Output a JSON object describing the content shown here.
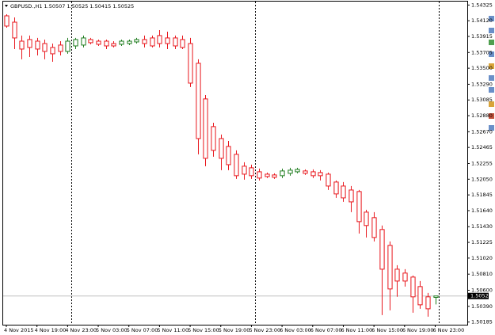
{
  "chart_data": {
    "type": "candlestick",
    "title": "GBPUSD.,H1  1.50507 1.50525 1.50415 1.50525",
    "categories": [
      "4 Nov 2015",
      null,
      null,
      null,
      "4 Nov 19:00",
      null,
      null,
      null,
      "4 Nov 23:00",
      null,
      null,
      null,
      "5 Nov 03:00",
      null,
      null,
      null,
      "5 Nov 07:00",
      null,
      null,
      null,
      "5 Nov 11:00",
      null,
      null,
      null,
      "5 Nov 15:00",
      null,
      null,
      null,
      "5 Nov 19:00",
      null,
      null,
      null,
      "5 Nov 23:00",
      null,
      null,
      null,
      "6 Nov 03:00",
      null,
      null,
      null,
      "6 Nov 07:00",
      null,
      null,
      null,
      "6 Nov 11:00",
      null,
      null,
      null,
      "6 Nov 15:00",
      null,
      null,
      null,
      "6 Nov 19:00",
      null,
      null,
      null,
      "6 Nov 23:00"
    ],
    "open": [
      1.54184,
      1.54101,
      1.53853,
      1.53874,
      1.53853,
      1.53822,
      1.53771,
      1.53802,
      1.53719,
      1.53791,
      1.53802,
      1.53874,
      1.53853,
      1.53853,
      1.53822,
      1.53812,
      1.53822,
      1.53843,
      1.53874,
      1.53895,
      1.53926,
      1.53895,
      1.53895,
      1.53874,
      1.53822,
      1.53564,
      1.53099,
      1.52737,
      1.52581,
      1.52478,
      1.52375,
      1.5222,
      1.52199,
      1.52147,
      1.52116,
      1.52106,
      1.52096,
      1.52127,
      1.52147,
      1.52158,
      1.52147,
      1.52137,
      1.52116,
      1.52013,
      1.51961,
      1.51909,
      1.51889,
      1.5162,
      1.51548,
      1.51393,
      1.51186,
      1.50875,
      1.50824,
      1.50772,
      1.50648,
      1.50514,
      1.50507
    ],
    "high": [
      1.54205,
      1.54163,
      1.53926,
      1.53926,
      1.53895,
      1.53874,
      1.53822,
      1.53853,
      1.53895,
      1.53895,
      1.53926,
      1.53895,
      1.53874,
      1.53874,
      1.53853,
      1.53874,
      1.53874,
      1.53895,
      1.53926,
      1.53926,
      1.53998,
      1.53977,
      1.53926,
      1.53926,
      1.53895,
      1.53616,
      1.5315,
      1.52788,
      1.52633,
      1.5255,
      1.52427,
      1.52271,
      1.5224,
      1.52189,
      1.52137,
      1.52127,
      1.52189,
      1.52199,
      1.52199,
      1.52178,
      1.52178,
      1.52168,
      1.52137,
      1.52034,
      1.52013,
      1.51961,
      1.51909,
      1.51651,
      1.5162,
      1.51445,
      1.51237,
      1.50927,
      1.50875,
      1.50793,
      1.5072,
      1.50565,
      1.50525
    ],
    "low": [
      1.54029,
      1.5375,
      1.53616,
      1.53646,
      1.53667,
      1.53616,
      1.53584,
      1.53667,
      1.53688,
      1.5375,
      1.53771,
      1.53812,
      1.53791,
      1.5375,
      1.53771,
      1.53791,
      1.53802,
      1.53822,
      1.53771,
      1.53771,
      1.53771,
      1.5375,
      1.5375,
      1.5375,
      1.53254,
      1.52375,
      1.5222,
      1.52344,
      1.52168,
      1.52168,
      1.52054,
      1.52044,
      1.52054,
      1.52034,
      1.52065,
      1.52054,
      1.52065,
      1.52096,
      1.52127,
      1.52106,
      1.52065,
      1.52034,
      1.51909,
      1.51806,
      1.51754,
      1.5162,
      1.51341,
      1.51289,
      1.51237,
      1.50276,
      1.50338,
      1.50514,
      1.50648,
      1.50307,
      1.50358,
      1.50255,
      1.50415
    ],
    "close": [
      1.5405,
      1.53895,
      1.5375,
      1.53771,
      1.5375,
      1.53719,
      1.53688,
      1.53719,
      1.53853,
      1.53874,
      1.53895,
      1.53833,
      1.53812,
      1.53791,
      1.53791,
      1.53853,
      1.53853,
      1.53874,
      1.53822,
      1.53791,
      1.53822,
      1.53822,
      1.53791,
      1.53771,
      1.53305,
      1.52581,
      1.52323,
      1.52427,
      1.52323,
      1.5224,
      1.52096,
      1.52116,
      1.52096,
      1.52065,
      1.52085,
      1.52075,
      1.52158,
      1.52168,
      1.52178,
      1.52127,
      1.52096,
      1.52096,
      1.51961,
      1.51858,
      1.51806,
      1.51754,
      1.51496,
      1.51445,
      1.51289,
      1.50875,
      1.50617,
      1.5072,
      1.5072,
      1.50514,
      1.5041,
      1.50358,
      1.50525
    ],
    "up_color": "#1a7a1a",
    "down_color": "#e8161c",
    "last_price": 1.50525,
    "ylim": [
      1.5015,
      1.5437
    ],
    "yticks": [
      1.54325,
      {
        "value": 1.5412,
        "label": "1.54120"
      },
      1.53915,
      1.53705,
      {
        "value": 1.535,
        "label": "1.53500"
      },
      {
        "value": 1.5329,
        "label": "1.53290"
      },
      1.53085,
      {
        "value": 1.5288,
        "label": "1.52880"
      },
      {
        "value": 1.5267,
        "label": "1.52670"
      },
      1.52465,
      1.52255,
      {
        "value": 1.5205,
        "label": "1.52050"
      },
      1.51845,
      {
        "value": 1.5164,
        "label": "1.51640"
      },
      {
        "value": 1.5143,
        "label": "1.51430"
      },
      1.51225,
      {
        "value": 1.5102,
        "label": "1.51020"
      },
      {
        "value": 1.5081,
        "label": "1.50810"
      },
      {
        "value": 1.506,
        "label": "1.50600"
      },
      {
        "value": 1.5039,
        "label": "1.50390"
      },
      1.50185
    ],
    "grid": false
  }
}
